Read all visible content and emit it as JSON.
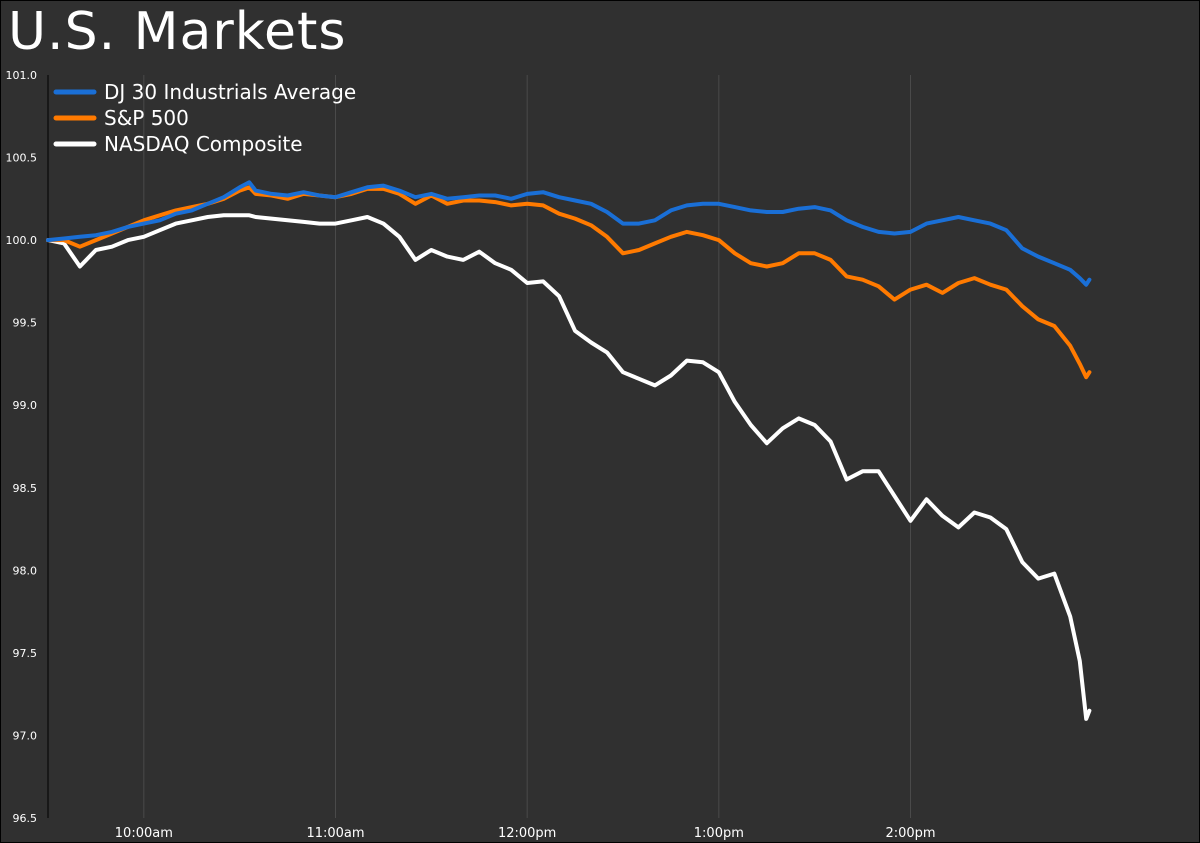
{
  "chart_data": {
    "type": "line",
    "title": "U.S. Markets",
    "xlabel": "",
    "ylabel": "",
    "ylim": [
      96.5,
      101.0
    ],
    "xlim_minutes": [
      570,
      930
    ],
    "grid": {
      "vertical": true,
      "horizontal": false
    },
    "legend_placement": "top-left",
    "y_ticks": [
      "101.0",
      "100.5",
      "100.0",
      "99.5",
      "99.0",
      "98.5",
      "98.0",
      "97.5",
      "97.0",
      "96.5"
    ],
    "x_ticks": [
      {
        "label": "10:00am",
        "minute": 600
      },
      {
        "label": "11:00am",
        "minute": 660
      },
      {
        "label": "12:00pm",
        "minute": 720
      },
      {
        "label": "1:00pm",
        "minute": 780
      },
      {
        "label": "2:00pm",
        "minute": 840
      }
    ],
    "series": [
      {
        "name": "DJ 30 Industrials Average",
        "color": "#1a6fd6",
        "x": [
          570,
          575,
          580,
          585,
          590,
          595,
          600,
          605,
          610,
          615,
          620,
          625,
          630,
          633,
          635,
          640,
          645,
          650,
          655,
          660,
          665,
          670,
          675,
          680,
          685,
          690,
          695,
          700,
          705,
          710,
          715,
          720,
          725,
          730,
          735,
          740,
          745,
          750,
          755,
          760,
          765,
          770,
          775,
          780,
          785,
          790,
          795,
          800,
          805,
          810,
          815,
          820,
          825,
          830,
          835,
          840,
          845,
          850,
          855,
          860,
          865,
          870,
          875,
          880,
          885,
          890,
          893,
          895,
          896
        ],
        "y": [
          100.0,
          100.01,
          100.02,
          100.03,
          100.05,
          100.08,
          100.1,
          100.12,
          100.16,
          100.18,
          100.22,
          100.26,
          100.32,
          100.35,
          100.3,
          100.28,
          100.27,
          100.29,
          100.27,
          100.26,
          100.29,
          100.32,
          100.33,
          100.3,
          100.26,
          100.28,
          100.25,
          100.26,
          100.27,
          100.27,
          100.25,
          100.28,
          100.29,
          100.26,
          100.24,
          100.22,
          100.17,
          100.1,
          100.1,
          100.12,
          100.18,
          100.21,
          100.22,
          100.22,
          100.2,
          100.18,
          100.17,
          100.17,
          100.19,
          100.2,
          100.18,
          100.12,
          100.08,
          100.05,
          100.04,
          100.05,
          100.1,
          100.12,
          100.14,
          100.12,
          100.1,
          100.06,
          99.95,
          99.9,
          99.86,
          99.82,
          99.77,
          99.73,
          99.76
        ]
      },
      {
        "name": "S&P 500",
        "color": "#ff7a00",
        "x": [
          570,
          575,
          580,
          585,
          590,
          595,
          600,
          605,
          610,
          615,
          620,
          625,
          630,
          633,
          635,
          640,
          645,
          650,
          655,
          660,
          665,
          670,
          675,
          680,
          685,
          690,
          695,
          700,
          705,
          710,
          715,
          720,
          725,
          730,
          735,
          740,
          745,
          750,
          755,
          760,
          765,
          770,
          775,
          780,
          785,
          790,
          795,
          800,
          805,
          810,
          815,
          820,
          825,
          830,
          835,
          840,
          845,
          850,
          855,
          860,
          865,
          870,
          875,
          880,
          885,
          890,
          893,
          895,
          896
        ],
        "y": [
          100.0,
          100.0,
          99.96,
          100.0,
          100.04,
          100.08,
          100.12,
          100.15,
          100.18,
          100.2,
          100.22,
          100.25,
          100.3,
          100.32,
          100.28,
          100.27,
          100.25,
          100.28,
          100.27,
          100.26,
          100.28,
          100.31,
          100.31,
          100.28,
          100.22,
          100.27,
          100.22,
          100.24,
          100.24,
          100.23,
          100.21,
          100.22,
          100.21,
          100.16,
          100.13,
          100.09,
          100.02,
          99.92,
          99.94,
          99.98,
          100.02,
          100.05,
          100.03,
          100.0,
          99.92,
          99.86,
          99.84,
          99.86,
          99.92,
          99.92,
          99.88,
          99.78,
          99.76,
          99.72,
          99.64,
          99.7,
          99.73,
          99.68,
          99.74,
          99.77,
          99.73,
          99.7,
          99.6,
          99.52,
          99.48,
          99.36,
          99.25,
          99.17,
          99.2
        ]
      },
      {
        "name": "NASDAQ Composite",
        "color": "#ffffff",
        "x": [
          570,
          575,
          580,
          585,
          590,
          595,
          600,
          605,
          610,
          615,
          620,
          625,
          630,
          633,
          635,
          640,
          645,
          650,
          655,
          660,
          665,
          670,
          675,
          680,
          685,
          690,
          695,
          700,
          705,
          710,
          715,
          720,
          725,
          730,
          735,
          740,
          745,
          750,
          755,
          760,
          765,
          770,
          775,
          780,
          785,
          790,
          795,
          800,
          805,
          810,
          815,
          820,
          825,
          830,
          835,
          840,
          845,
          850,
          855,
          860,
          865,
          870,
          875,
          880,
          885,
          890,
          893,
          895,
          896
        ],
        "y": [
          100.0,
          99.98,
          99.84,
          99.94,
          99.96,
          100.0,
          100.02,
          100.06,
          100.1,
          100.12,
          100.14,
          100.15,
          100.15,
          100.15,
          100.14,
          100.13,
          100.12,
          100.11,
          100.1,
          100.1,
          100.12,
          100.14,
          100.1,
          100.02,
          99.88,
          99.94,
          99.9,
          99.88,
          99.93,
          99.86,
          99.82,
          99.74,
          99.75,
          99.66,
          99.45,
          99.38,
          99.32,
          99.2,
          99.16,
          99.12,
          99.18,
          99.27,
          99.26,
          99.2,
          99.02,
          98.88,
          98.77,
          98.86,
          98.92,
          98.88,
          98.78,
          98.55,
          98.6,
          98.6,
          98.45,
          98.3,
          98.43,
          98.33,
          98.26,
          98.35,
          98.32,
          98.25,
          98.05,
          97.95,
          97.98,
          97.72,
          97.45,
          97.1,
          97.15
        ]
      }
    ]
  }
}
